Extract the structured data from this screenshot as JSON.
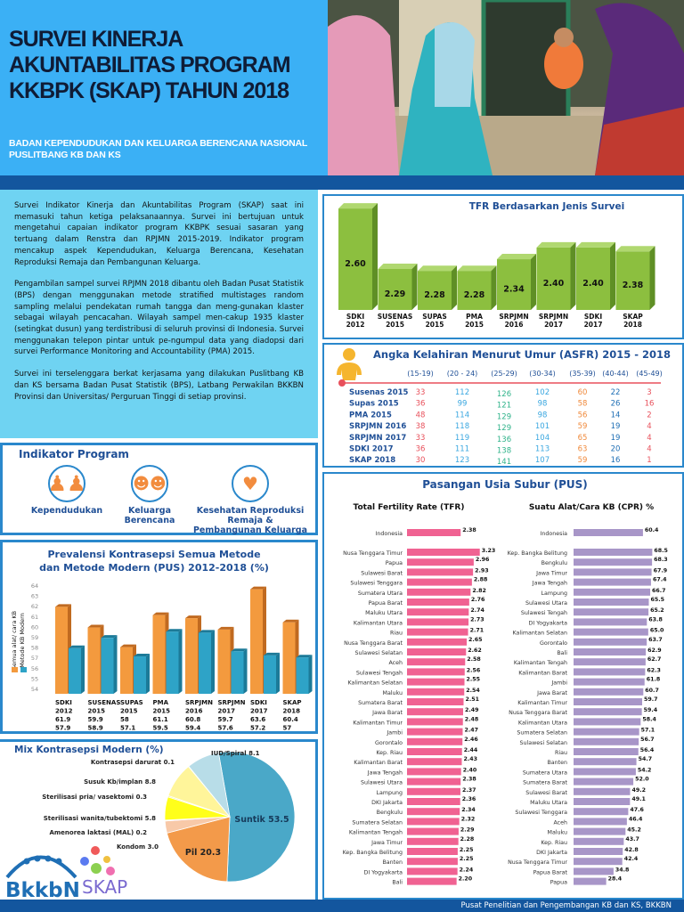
{
  "header": {
    "title_lines": [
      "SURVEI KINERJA",
      "AKUNTABILITAS PROGRAM",
      "KKBPK (SKAP) TAHUN 2018"
    ],
    "subtitle_lines": [
      "BADAN KEPENDUDUKAN DAN KELUARGA BERENCANA NASIONAL",
      "PUSLITBANG KB DAN KS"
    ]
  },
  "intro": {
    "paragraphs": [
      "Survei Indikator Kinerja dan Akuntabilitas Program (SKAP) saat ini memasuki tahun ketiga pelaksanaannya. Survei ini bertujuan untuk mengetahui capaian indikator program KKBPK sesuai sasaran yang tertuang dalam Renstra dan RPJMN 2015-2019. Indikator program mencakup aspek Kependudukan, Keluarga Berencana, Kesehatan Reproduksi Remaja dan Pembangunan Keluarga.",
      "Pengambilan sampel survei RPJMN 2018 dibantu oleh Badan Pusat Statistik (BPS) dengan menggunakan metode stratified multistages random sampling melalui pendekatan rumah tangga dan meng-gunakan klaster sebagai wilayah pencacahan. Wilayah sampel men-cakup 1935 klaster (setingkat dusun) yang terdistribusi di seluruh provinsi di Indonesia. Survei menggunakan telepon pintar untuk pe-ngumpul data yang diadopsi dari survei Performance Monitoring and Accountability (PMA) 2015.",
      "Survei ini terselenggara berkat kerjasama yang dilakukan Puslitbang KB dan KS bersama Badan Pusat Statistik (BPS), Latbang Perwakilan BKKBN Provinsi dan Universitas/ Perguruan Tinggi di setiap provinsi."
    ]
  },
  "indikator": {
    "title": "Indikator Program",
    "items": [
      {
        "label": "Kependudukan",
        "icon": "people-group-icon"
      },
      {
        "label": "Keluarga Berencana",
        "icon": "family-icon"
      },
      {
        "label": "Kesehatan Reproduksi Remaja & Pembangunan Keluarga",
        "icon": "health-counselor-icon"
      }
    ]
  },
  "footer": {
    "text": "Pusat Penelitian dan Pengembangan KB dan KS, BKKBN"
  },
  "logos": {
    "bkkbn": "BkkbN",
    "skap": "SKAP"
  },
  "colors": {
    "header_bg": "#3bb0f5",
    "band": "#13569e",
    "tfr_bar": "#8cbf3f",
    "prev_all": "#f39a3e",
    "prev_modern": "#2ea3c7",
    "pus_tfr": "#f06292",
    "pus_cpr": "#a896c8"
  },
  "chart_data": [
    {
      "id": "tfr_survey",
      "type": "bar",
      "title": "TFR Berdasarkan Jenis Survei",
      "categories": [
        [
          "SDKI",
          "2012"
        ],
        [
          "SUSENAS",
          "2015"
        ],
        [
          "SUPAS",
          "2015"
        ],
        [
          "PMA",
          "2015"
        ],
        [
          "SRPJMN",
          "2016"
        ],
        [
          "SRPJMN",
          "2017"
        ],
        [
          "SDKI",
          "2017"
        ],
        [
          "SKAP",
          "2018"
        ]
      ],
      "values": [
        2.6,
        2.29,
        2.28,
        2.28,
        2.34,
        2.4,
        2.4,
        2.38
      ],
      "value_labels": [
        "2.60",
        "2.29",
        "2.28",
        "2.28",
        "2.34",
        "2.40",
        "2.40",
        "2.38"
      ]
    },
    {
      "id": "asfr",
      "type": "table",
      "title": "Angka Kelahiran Menurut Umur (ASFR) 2015 - 2018",
      "columns": [
        "(15-19)",
        "(20 - 24)",
        "(25-29)",
        "(30-34)",
        "(35-39)",
        "(40-44)",
        "(45-49)"
      ],
      "column_colors": [
        "#e8505b",
        "#3aa7e0",
        "#2fb38a",
        "#3aa7e0",
        "#f08a3c",
        "#1f6fb5",
        "#e8505b"
      ],
      "rows": [
        {
          "label": "Susenas 2015",
          "values": [
            33,
            112,
            126,
            102,
            60,
            22,
            3
          ]
        },
        {
          "label": "Supas 2015",
          "values": [
            36,
            99,
            121,
            98,
            58,
            26,
            16
          ]
        },
        {
          "label": "PMA 2015",
          "values": [
            48,
            114,
            129,
            98,
            56,
            14,
            2
          ]
        },
        {
          "label": "SRPJMN 2016",
          "values": [
            38,
            118,
            129,
            101,
            59,
            19,
            4
          ]
        },
        {
          "label": "SRPJMN 2017",
          "values": [
            33,
            119,
            136,
            104,
            65,
            19,
            4
          ]
        },
        {
          "label": "SDKI 2017",
          "values": [
            36,
            111,
            138,
            113,
            63,
            20,
            4
          ]
        },
        {
          "label": "SKAP 2018",
          "values": [
            30,
            123,
            141,
            107,
            59,
            16,
            1
          ]
        }
      ]
    },
    {
      "id": "prevalensi",
      "type": "bar",
      "title": "Prevalensi Kontrasepsi Semua Metode dan Metode Modern (PUS) 2012-2018 (%)",
      "ylabel": "Semua alat/ cara KB",
      "ylabel2": "Metode KB Modern",
      "ylim": [
        54,
        64
      ],
      "yticks": [
        54,
        55,
        56,
        57,
        58,
        59,
        60,
        61,
        62,
        63,
        64
      ],
      "categories": [
        [
          "SDKI",
          "2012"
        ],
        [
          "SUSENAS",
          "2015"
        ],
        [
          "SUPAS",
          "2015"
        ],
        [
          "PMA",
          "2015"
        ],
        [
          "SRPJMN",
          "2016"
        ],
        [
          "SRPJMN",
          "2017"
        ],
        [
          "SDKI",
          "2017"
        ],
        [
          "SKAP",
          "2018"
        ]
      ],
      "series": [
        {
          "name": "Semua alat/ cara KB",
          "values": [
            61.9,
            59.9,
            58,
            61.1,
            60.8,
            59.7,
            63.6,
            60.4
          ]
        },
        {
          "name": "Metode KB Modern",
          "values": [
            57.9,
            58.9,
            57.1,
            59.5,
            59.4,
            57.6,
            57.2,
            57
          ]
        }
      ]
    },
    {
      "id": "mix",
      "type": "pie",
      "title": "Mix Kontrasepsi Modern (%)",
      "slices": [
        {
          "label": "Suntik",
          "value": 53.5,
          "color": "#4aa8c8"
        },
        {
          "label": "Pil",
          "value": 20.3,
          "color": "#f39a4a"
        },
        {
          "label": "Kondom",
          "value": 3.0,
          "color": "#f8c9a8"
        },
        {
          "label": "Amenorea laktasi (MAL)",
          "value": 0.2,
          "color": "#e8e0c0"
        },
        {
          "label": "Sterilisasi wanita/tubektomi",
          "value": 5.8,
          "color": "#ffff1a"
        },
        {
          "label": "Sterilisasi pria/ vasektomi",
          "value": 0.3,
          "color": "#f5f0a0"
        },
        {
          "label": "Susuk Kb/implan",
          "value": 8.8,
          "color": "#fff59a"
        },
        {
          "label": "Kontrasepsi darurat",
          "value": 0.1,
          "color": "#e0e0e0"
        },
        {
          "label": "IUD/Spiral",
          "value": 8.1,
          "color": "#b8dde8"
        }
      ]
    },
    {
      "id": "pus_tfr",
      "type": "bar",
      "orientation": "horizontal",
      "section_title": "Pasangan Usia Subur (PUS)",
      "title": "Total Fertility Rate (TFR)",
      "categories": [
        "Indonesia",
        "Nusa Tenggara Timur",
        "Papua",
        "Sulawesi Barat",
        "Sulawesi Tenggara",
        "Sumatera Utara",
        "Papua Barat",
        "Maluku Utara",
        "Kalimantan Utara",
        "Riau",
        "Nusa Tenggara Barat",
        "Sulawesi Selatan",
        "Aceh",
        "Sulawesi Tengah",
        "Kalimantan Selatan",
        "Maluku",
        "Sumatera Barat",
        "Jawa Barat",
        "Kalimantan Timur",
        "Jambi",
        "Gorontalo",
        "Kep. Riau",
        "Kalimantan Barat",
        "Jawa Tengah",
        "Sulawesi Utara",
        "Lampung",
        "DKI Jakarta",
        "Bengkulu",
        "Sumatera Selatan",
        "Kalimantan Tengah",
        "Jawa Timur",
        "Kep. Bangka Belitung",
        "Banten",
        "DI Yogyakarta",
        "Bali"
      ],
      "values": [
        2.38,
        3.23,
        2.96,
        2.93,
        2.88,
        2.82,
        2.76,
        2.74,
        2.73,
        2.71,
        2.65,
        2.62,
        2.58,
        2.56,
        2.55,
        2.54,
        2.51,
        2.49,
        2.48,
        2.47,
        2.46,
        2.44,
        2.43,
        2.4,
        2.38,
        2.37,
        2.36,
        2.34,
        2.32,
        2.29,
        2.28,
        2.25,
        2.25,
        2.24,
        2.2
      ]
    },
    {
      "id": "pus_cpr",
      "type": "bar",
      "orientation": "horizontal",
      "title": "Suatu Alat/Cara KB (CPR) %",
      "categories": [
        "Indonesia",
        "Kep. Bangka Belitung",
        "Bengkulu",
        "Jawa Timur",
        "Jawa Tengah",
        "Lampung",
        "Sulawesi Utara",
        "Sulawesi Tengah",
        "DI Yogyakarta",
        "Kalimantan Selatan",
        "Gorontalo",
        "Bali",
        "Kalimantan Tengah",
        "Kalimantan Barat",
        "Jambi",
        "Jawa Barat",
        "Kalimantan Timur",
        "Nusa Tenggara Barat",
        "Kalimantan Utara",
        "Sumatera Selatan",
        "Sulawesi Selatan",
        "Riau",
        "Banten",
        "Sumatera Utara",
        "Sumatera Barat",
        "Sulawesi Barat",
        "Maluku Utara",
        "Sulawesi Tenggara",
        "Aceh",
        "Maluku",
        "Kep. Riau",
        "DKI Jakarta",
        "Nusa Tenggara Timur",
        "Papua Barat",
        "Papua"
      ],
      "values": [
        60.4,
        68.5,
        68.3,
        67.9,
        67.4,
        66.7,
        65.5,
        65.2,
        63.8,
        65.0,
        63.7,
        62.9,
        62.7,
        62.3,
        61.8,
        60.7,
        59.7,
        59.4,
        58.4,
        57.1,
        56.7,
        56.4,
        54.7,
        54.2,
        52.0,
        49.2,
        49.1,
        47.6,
        46.4,
        45.2,
        43.7,
        42.8,
        42.4,
        34.8,
        28.4
      ]
    }
  ]
}
